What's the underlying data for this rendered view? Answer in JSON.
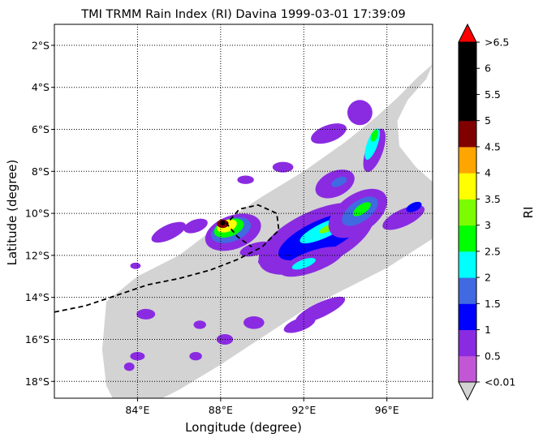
{
  "chart_data": {
    "type": "heatmap",
    "title": "TMI TRMM Rain Index (RI) Davina 1999-03-01 17:39:09",
    "xlabel": "Longitude (degree)",
    "ylabel": "Latitude (degree)",
    "xlim": [
      80.0,
      98.2
    ],
    "ylim": [
      -18.8,
      -1.0
    ],
    "x_ticks": [
      {
        "value": 84,
        "label": "84°E"
      },
      {
        "value": 88,
        "label": "88°E"
      },
      {
        "value": 92,
        "label": "92°E"
      },
      {
        "value": 96,
        "label": "96°E"
      }
    ],
    "y_ticks": [
      {
        "value": -2,
        "label": "2°S"
      },
      {
        "value": -4,
        "label": "4°S"
      },
      {
        "value": -6,
        "label": "6°S"
      },
      {
        "value": -8,
        "label": "8°S"
      },
      {
        "value": -10,
        "label": "10°S"
      },
      {
        "value": -12,
        "label": "12°S"
      },
      {
        "value": -14,
        "label": "14°S"
      },
      {
        "value": -16,
        "label": "16°S"
      },
      {
        "value": -18,
        "label": "18°S"
      }
    ],
    "grid": true,
    "grid_style": "dotted",
    "swath_color": "#d3d3d3",
    "swath_outline": [
      [
        82.5,
        -14.2
      ],
      [
        84.0,
        -13.0
      ],
      [
        86.0,
        -12.0
      ],
      [
        88.0,
        -10.5
      ],
      [
        90.0,
        -9.2
      ],
      [
        92.0,
        -8.0
      ],
      [
        94.0,
        -6.6
      ],
      [
        95.5,
        -5.4
      ],
      [
        96.5,
        -4.5
      ],
      [
        97.5,
        -3.5
      ],
      [
        98.2,
        -2.9
      ],
      [
        97.9,
        -3.6
      ],
      [
        97.0,
        -4.6
      ],
      [
        96.5,
        -5.6
      ],
      [
        96.6,
        -6.8
      ],
      [
        97.4,
        -7.8
      ],
      [
        98.2,
        -8.5
      ],
      [
        98.2,
        -11.2
      ],
      [
        96.0,
        -12.6
      ],
      [
        94.0,
        -13.6
      ],
      [
        92.0,
        -14.6
      ],
      [
        90.0,
        -15.9
      ],
      [
        88.0,
        -17.2
      ],
      [
        86.0,
        -18.4
      ],
      [
        85.2,
        -18.8
      ],
      [
        82.8,
        -18.8
      ],
      [
        82.5,
        -18.2
      ],
      [
        82.3,
        -16.5
      ]
    ],
    "storm_track": {
      "style": "dashed",
      "color": "#000000",
      "points": [
        [
          80.0,
          -14.7
        ],
        [
          81.5,
          -14.4
        ],
        [
          83.0,
          -13.9
        ],
        [
          84.5,
          -13.4
        ],
        [
          86.0,
          -13.1
        ],
        [
          87.5,
          -12.7
        ],
        [
          88.8,
          -12.2
        ],
        [
          90.0,
          -11.6
        ],
        [
          90.8,
          -10.8
        ],
        [
          90.7,
          -10.0
        ],
        [
          89.8,
          -9.6
        ],
        [
          88.9,
          -9.8
        ],
        [
          88.3,
          -10.5
        ],
        [
          88.8,
          -11.1
        ],
        [
          89.5,
          -11.6
        ]
      ]
    },
    "colorbar": {
      "label": "RI",
      "tick_labels": [
        ">6.5",
        "6",
        "5.5",
        "5",
        "4.5",
        "4",
        "3.5",
        "3",
        "2.5",
        "2",
        "1.5",
        "1",
        "0.5",
        "<0.01"
      ],
      "levels": [
        {
          "min": 0.01,
          "max": 0.5,
          "color": "#c257d6"
        },
        {
          "min": 0.5,
          "max": 1.0,
          "color": "#8a2be2"
        },
        {
          "min": 1.0,
          "max": 1.5,
          "color": "#0000ff"
        },
        {
          "min": 1.5,
          "max": 2.0,
          "color": "#4169e1"
        },
        {
          "min": 2.0,
          "max": 2.5,
          "color": "#00ffff"
        },
        {
          "min": 2.5,
          "max": 3.0,
          "color": "#00ff00"
        },
        {
          "min": 3.0,
          "max": 3.5,
          "color": "#7cfc00"
        },
        {
          "min": 3.5,
          "max": 4.0,
          "color": "#ffff00"
        },
        {
          "min": 4.0,
          "max": 4.5,
          "color": "#ffa500"
        },
        {
          "min": 4.5,
          "max": 5.0,
          "color": "#800000"
        },
        {
          "min": 5.0,
          "max": 5.5,
          "color": "#000000"
        },
        {
          "min": 5.5,
          "max": 6.0,
          "color": "#000000"
        },
        {
          "min": 6.0,
          "max": 6.5,
          "color": "#000000"
        }
      ],
      "over_color": "#ff0000",
      "under_color": "#d3d3d3"
    },
    "rain_cells": [
      {
        "lon": 94.7,
        "lat": -5.2,
        "rx": 0.6,
        "ry": 0.6,
        "ri": 0.5,
        "angle": 0
      },
      {
        "lon": 95.4,
        "lat": -7.0,
        "rx": 1.1,
        "ry": 0.4,
        "ri": 0.5,
        "angle": -70
      },
      {
        "lon": 95.3,
        "lat": -6.7,
        "rx": 0.8,
        "ry": 0.25,
        "ri": 2.0,
        "angle": -70
      },
      {
        "lon": 95.4,
        "lat": -6.3,
        "rx": 0.3,
        "ry": 0.15,
        "ri": 2.5,
        "angle": -70
      },
      {
        "lon": 93.2,
        "lat": -6.2,
        "rx": 0.9,
        "ry": 0.4,
        "ri": 0.5,
        "angle": -20
      },
      {
        "lon": 93.5,
        "lat": -8.6,
        "rx": 1.0,
        "ry": 0.6,
        "ri": 0.5,
        "angle": -25
      },
      {
        "lon": 93.7,
        "lat": -8.5,
        "rx": 0.4,
        "ry": 0.2,
        "ri": 1.5,
        "angle": -25
      },
      {
        "lon": 91.0,
        "lat": -7.8,
        "rx": 0.5,
        "ry": 0.25,
        "ri": 0.5,
        "angle": 0
      },
      {
        "lon": 89.2,
        "lat": -8.4,
        "rx": 0.4,
        "ry": 0.2,
        "ri": 0.5,
        "angle": 0
      },
      {
        "lon": 86.8,
        "lat": -10.6,
        "rx": 0.6,
        "ry": 0.3,
        "ri": 0.5,
        "angle": -20
      },
      {
        "lon": 85.5,
        "lat": -10.9,
        "rx": 0.9,
        "ry": 0.35,
        "ri": 0.5,
        "angle": -25
      },
      {
        "lon": 88.6,
        "lat": -10.9,
        "rx": 1.4,
        "ry": 0.8,
        "ri": 0.5,
        "angle": -20
      },
      {
        "lon": 88.5,
        "lat": -10.8,
        "rx": 1.0,
        "ry": 0.55,
        "ri": 1.5,
        "angle": -20
      },
      {
        "lon": 88.4,
        "lat": -10.7,
        "rx": 0.75,
        "ry": 0.4,
        "ri": 2.5,
        "angle": -20
      },
      {
        "lon": 88.3,
        "lat": -10.6,
        "rx": 0.5,
        "ry": 0.28,
        "ri": 3.5,
        "angle": -20
      },
      {
        "lon": 88.1,
        "lat": -10.5,
        "rx": 0.28,
        "ry": 0.2,
        "ri": 4.5,
        "angle": 0
      },
      {
        "lon": 88.1,
        "lat": -10.45,
        "rx": 0.12,
        "ry": 0.12,
        "ri": 5.5,
        "angle": 0
      },
      {
        "lon": 89.7,
        "lat": -11.7,
        "rx": 0.8,
        "ry": 0.3,
        "ri": 0.5,
        "angle": -15
      },
      {
        "lon": 92.6,
        "lat": -11.2,
        "rx": 3.0,
        "ry": 1.3,
        "ri": 0.5,
        "angle": -25
      },
      {
        "lon": 92.8,
        "lat": -11.1,
        "rx": 2.2,
        "ry": 0.75,
        "ri": 1.0,
        "angle": -25
      },
      {
        "lon": 93.0,
        "lat": -10.8,
        "rx": 1.3,
        "ry": 0.35,
        "ri": 2.0,
        "angle": -25
      },
      {
        "lon": 93.2,
        "lat": -10.7,
        "rx": 0.5,
        "ry": 0.15,
        "ri": 3.0,
        "angle": -25
      },
      {
        "lon": 94.6,
        "lat": -10.0,
        "rx": 1.6,
        "ry": 0.9,
        "ri": 0.5,
        "angle": -35
      },
      {
        "lon": 94.7,
        "lat": -9.9,
        "rx": 1.0,
        "ry": 0.5,
        "ri": 1.5,
        "angle": -35
      },
      {
        "lon": 94.8,
        "lat": -9.8,
        "rx": 0.5,
        "ry": 0.22,
        "ri": 2.5,
        "angle": -35
      },
      {
        "lon": 92.4,
        "lat": -12.3,
        "rx": 1.6,
        "ry": 0.5,
        "ri": 0.5,
        "angle": -20
      },
      {
        "lon": 92.0,
        "lat": -12.4,
        "rx": 0.6,
        "ry": 0.2,
        "ri": 2.0,
        "angle": -20
      },
      {
        "lon": 90.4,
        "lat": -12.3,
        "rx": 0.6,
        "ry": 0.25,
        "ri": 0.5,
        "angle": 0
      },
      {
        "lon": 96.8,
        "lat": -10.2,
        "rx": 1.1,
        "ry": 0.4,
        "ri": 0.5,
        "angle": -25
      },
      {
        "lon": 97.3,
        "lat": -9.7,
        "rx": 0.4,
        "ry": 0.2,
        "ri": 1.0,
        "angle": -25
      },
      {
        "lon": 92.8,
        "lat": -14.6,
        "rx": 1.3,
        "ry": 0.35,
        "ri": 0.5,
        "angle": -25
      },
      {
        "lon": 91.8,
        "lat": -15.3,
        "rx": 0.8,
        "ry": 0.3,
        "ri": 0.5,
        "angle": -20
      },
      {
        "lon": 89.6,
        "lat": -15.2,
        "rx": 0.5,
        "ry": 0.3,
        "ri": 0.5,
        "angle": 0
      },
      {
        "lon": 88.2,
        "lat": -16.0,
        "rx": 0.4,
        "ry": 0.25,
        "ri": 0.5,
        "angle": 0
      },
      {
        "lon": 87.0,
        "lat": -15.3,
        "rx": 0.3,
        "ry": 0.2,
        "ri": 0.5,
        "angle": 0
      },
      {
        "lon": 84.4,
        "lat": -14.8,
        "rx": 0.45,
        "ry": 0.25,
        "ri": 0.5,
        "angle": 0
      },
      {
        "lon": 84.0,
        "lat": -16.8,
        "rx": 0.35,
        "ry": 0.2,
        "ri": 0.5,
        "angle": 0
      },
      {
        "lon": 86.8,
        "lat": -16.8,
        "rx": 0.3,
        "ry": 0.2,
        "ri": 0.5,
        "angle": 0
      },
      {
        "lon": 83.6,
        "lat": -17.3,
        "rx": 0.25,
        "ry": 0.2,
        "ri": 0.5,
        "angle": 0
      },
      {
        "lon": 83.9,
        "lat": -12.5,
        "rx": 0.25,
        "ry": 0.15,
        "ri": 0.5,
        "angle": 0
      }
    ]
  }
}
